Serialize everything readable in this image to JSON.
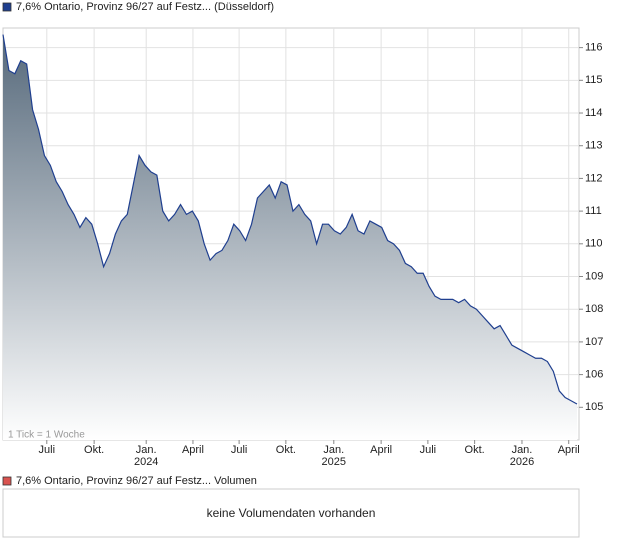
{
  "chart_data": {
    "type": "area",
    "title": "7,6% Ontario, Provinz 96/27 auf Festz... (Düsseldorf)",
    "tick_note": "1 Tick = 1 Woche",
    "color": "#1f3f8f",
    "fill_top": "#56697b",
    "fill_bottom": "#ffffff",
    "grid": true,
    "values": [
      116.4,
      115.3,
      115.2,
      115.6,
      115.5,
      114.1,
      113.5,
      112.7,
      112.4,
      111.9,
      111.6,
      111.2,
      110.9,
      110.5,
      110.8,
      110.6,
      110.0,
      109.3,
      109.7,
      110.3,
      110.7,
      110.9,
      111.8,
      112.7,
      112.4,
      112.2,
      112.1,
      111.0,
      110.7,
      110.9,
      111.2,
      110.9,
      111.0,
      110.7,
      110.0,
      109.5,
      109.7,
      109.8,
      110.1,
      110.6,
      110.4,
      110.1,
      110.6,
      111.4,
      111.6,
      111.8,
      111.4,
      111.9,
      111.8,
      111.0,
      111.2,
      110.9,
      110.7,
      110.0,
      110.6,
      110.6,
      110.4,
      110.3,
      110.5,
      110.9,
      110.4,
      110.3,
      110.7,
      110.6,
      110.5,
      110.1,
      110.0,
      109.8,
      109.4,
      109.3,
      109.1,
      109.1,
      108.7,
      108.4,
      108.3,
      108.3,
      108.3,
      108.2,
      108.3,
      108.1,
      108.0,
      107.8,
      107.6,
      107.4,
      107.5,
      107.2,
      106.9,
      106.8,
      106.7,
      106.6,
      106.5,
      106.5,
      106.4,
      106.1,
      105.5,
      105.3,
      105.2,
      105.1
    ],
    "ylim": [
      104,
      116.6
    ],
    "yticks": [
      105,
      106,
      107,
      108,
      109,
      110,
      111,
      112,
      113,
      114,
      115,
      116
    ],
    "xticks": [
      {
        "value": 7.4,
        "label": "Juli"
      },
      {
        "value": 15.4,
        "label": "Okt."
      },
      {
        "value": 24.2,
        "label": "Jan.",
        "year": "2024"
      },
      {
        "value": 32.1,
        "label": "April"
      },
      {
        "value": 39.9,
        "label": "Juli"
      },
      {
        "value": 47.8,
        "label": "Okt."
      },
      {
        "value": 55.9,
        "label": "Jan.",
        "year": "2025"
      },
      {
        "value": 63.9,
        "label": "April"
      },
      {
        "value": 71.8,
        "label": "Juli"
      },
      {
        "value": 79.7,
        "label": "Okt."
      },
      {
        "value": 87.7,
        "label": "Jan.",
        "year": "2026"
      },
      {
        "value": 95.6,
        "label": "April"
      }
    ],
    "volume_title": "7,6% Ontario, Provinz 96/27 auf Festz... Volumen",
    "volume_message": "keine Volumendaten vorhanden",
    "volume_color": "#d9534f"
  }
}
